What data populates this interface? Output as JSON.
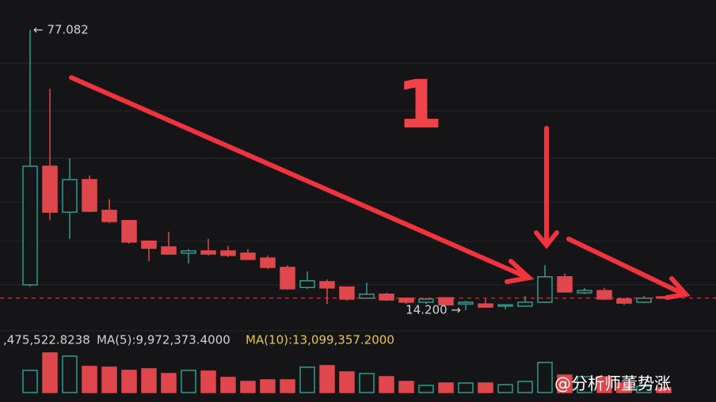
{
  "chart_data": {
    "type": "candlestick",
    "up_color": "#2a9d8f",
    "down_color": "#e0474c",
    "ylim": [
      11.36,
      83.8
    ],
    "open": [
      19.9,
      46.5,
      36.2,
      43.5,
      36.6,
      34.3,
      29.7,
      28.4,
      27.0,
      27.5,
      27.5,
      27.0,
      25.9,
      23.8,
      19.3,
      20.6,
      19.4,
      16.9,
      17.8,
      16.9,
      16.0,
      17.0,
      15.6,
      15.6,
      15.1,
      15.1,
      16.0,
      21.7,
      18.1,
      18.6,
      16.7,
      16.0,
      17.2
    ],
    "high": [
      77.082,
      63.9,
      48.3,
      44.4,
      39.1,
      34.3,
      29.7,
      31.8,
      27.9,
      30.2,
      28.6,
      27.9,
      26.5,
      24.3,
      22.9,
      21.1,
      19.4,
      20.4,
      18.1,
      16.9,
      17.0,
      17.0,
      16.3,
      16.7,
      15.4,
      17.4,
      24.3,
      22.4,
      19.2,
      19.2,
      17.0,
      17.4,
      17.2
    ],
    "low": [
      19.5,
      34.4,
      30.2,
      36.2,
      33.7,
      29.1,
      25.2,
      26.8,
      24.7,
      26.5,
      26.1,
      25.6,
      23.4,
      18.8,
      19.0,
      15.6,
      16.3,
      16.9,
      16.3,
      15.6,
      15.6,
      15.3,
      14.2,
      14.9,
      14.4,
      15.1,
      15.8,
      18.3,
      17.8,
      16.5,
      15.4,
      15.8,
      16.9
    ],
    "close": [
      46.5,
      36.2,
      43.5,
      36.4,
      34.1,
      29.5,
      28.1,
      26.8,
      27.5,
      26.8,
      26.5,
      25.6,
      23.8,
      19.0,
      20.8,
      19.2,
      16.7,
      17.8,
      16.5,
      16.0,
      16.7,
      15.4,
      16.0,
      14.9,
      15.4,
      16.0,
      21.7,
      18.3,
      18.6,
      16.7,
      15.8,
      16.9,
      16.9
    ],
    "high_label": "← 77.082",
    "low_label": "14.200 →",
    "volume": [
      21,
      37.5,
      34.5,
      24.75,
      24,
      21,
      22.5,
      18,
      21,
      20.25,
      14.25,
      10.5,
      12,
      12,
      24,
      25.5,
      19.5,
      18,
      15,
      10.5,
      6.75,
      9,
      9,
      9,
      7.5,
      10.5,
      28.5,
      16.5,
      15,
      15,
      9,
      6,
      4.5
    ],
    "vlim": [
      0,
      42
    ],
    "volume_label": ",475,522.8238",
    "ma5_label": "MA(5):9,972,373.4000",
    "ma10_label": "MA(10):13,099,357.2000",
    "annotation": "1",
    "watermark": "@分析师董势涨"
  }
}
